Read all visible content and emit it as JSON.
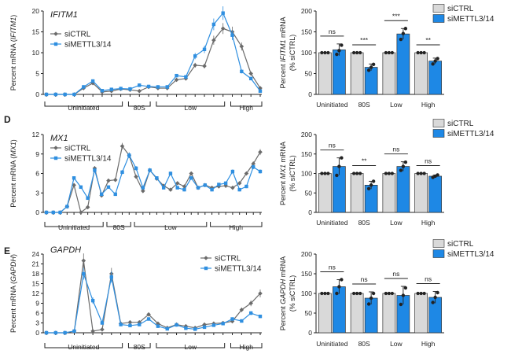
{
  "chart_data": [
    {
      "type": "line",
      "panel": "",
      "title": "IFITM1",
      "ylabel_parts": [
        "Percent mRNA (",
        "IFITM1",
        ")"
      ],
      "ylim": [
        0,
        20
      ],
      "yticks": [
        0,
        5,
        10,
        15,
        20
      ],
      "fractions": 24,
      "legend": "top-left",
      "series": [
        {
          "name": "siCTRL",
          "color": "#6b6b6b",
          "marker": "diamond",
          "values": [
            0,
            0,
            0,
            0,
            1.5,
            2.7,
            0.6,
            0.8,
            1.3,
            1.1,
            0.8,
            1.8,
            1.5,
            1.5,
            3.5,
            3.8,
            7,
            6.8,
            13,
            15.8,
            15,
            11.5,
            5,
            1.5
          ]
        },
        {
          "name": "siMETTL3/14",
          "color": "#2f8fe0",
          "marker": "square",
          "values": [
            0,
            0,
            0,
            0,
            1.8,
            3.2,
            0.9,
            1.2,
            1.4,
            1.3,
            2.2,
            1.9,
            1.8,
            1.8,
            4.5,
            4.2,
            9.2,
            10.8,
            16.8,
            19.5,
            14.2,
            5.5,
            3.8,
            0.8
          ]
        }
      ],
      "regions": [
        "Uninitiated",
        "80S",
        "Low",
        "High"
      ]
    },
    {
      "type": "line",
      "panel": "D",
      "title": "MX1",
      "ylabel_parts": [
        "Percent mRNA (",
        "MX1",
        ")"
      ],
      "ylim": [
        0,
        12
      ],
      "yticks": [
        0,
        3,
        6,
        9,
        12
      ],
      "fractions": 32,
      "legend": "top-left",
      "series": [
        {
          "name": "siCTRL",
          "color": "#6b6b6b",
          "marker": "diamond",
          "values": [
            0,
            0,
            0,
            0.9,
            4.2,
            0,
            0.8,
            6.8,
            2.6,
            4.9,
            5,
            10.2,
            8.8,
            5.5,
            3.3,
            6.5,
            5.2,
            4.1,
            3.5,
            4.5,
            4,
            6,
            3.8,
            4.2,
            3.8,
            4,
            4.1,
            3.8,
            4.5,
            6,
            7.5,
            9.3
          ]
        },
        {
          "name": "siMETTL3/14",
          "color": "#2f8fe0",
          "marker": "square",
          "values": [
            0,
            0,
            0,
            0.9,
            5.3,
            3.9,
            2.2,
            6.5,
            2.8,
            3.9,
            2.8,
            6.2,
            8.8,
            6.8,
            3.8,
            6.5,
            5.3,
            3.8,
            6,
            3.8,
            3.5,
            5.3,
            3.8,
            4.2,
            3.5,
            4.3,
            4.5,
            6.3,
            3.5,
            4,
            7,
            6.3
          ]
        }
      ],
      "regions": [
        "Uninitiated",
        "80S",
        "Low",
        "High"
      ]
    },
    {
      "type": "line",
      "panel": "E",
      "title": "GAPDH",
      "ylabel_parts": [
        "Percent mRNA (",
        "GAPDH",
        ")"
      ],
      "ylim": [
        0,
        24
      ],
      "yticks": [
        0,
        3,
        6,
        9,
        12,
        15,
        18,
        21,
        24
      ],
      "fractions": 24,
      "legend": "top-right",
      "series": [
        {
          "name": "siCTRL",
          "color": "#6b6b6b",
          "marker": "diamond",
          "values": [
            0,
            0,
            0,
            0.5,
            22,
            0.5,
            1,
            18,
            2.8,
            3.2,
            3.2,
            5.6,
            2.8,
            1.5,
            2.5,
            2,
            1.5,
            2.5,
            2.8,
            3,
            3.5,
            7,
            9,
            12
          ]
        },
        {
          "name": "siMETTL3/14",
          "color": "#2f8fe0",
          "marker": "square",
          "values": [
            0,
            0,
            0,
            0.5,
            18,
            9.8,
            3,
            17,
            2.5,
            2.2,
            2.5,
            4.2,
            2,
            1.2,
            2.4,
            1.4,
            1.1,
            1.7,
            2.3,
            2.8,
            4.2,
            3.6,
            6,
            5
          ]
        }
      ],
      "regions": [
        "Uninitiated",
        "80S",
        "Low",
        "High"
      ]
    },
    {
      "type": "bar",
      "panel": "",
      "ylabel_lines": [
        [
          "Percent ",
          "IFITM1",
          " mRNA"
        ],
        [
          "(% siCTRL)"
        ]
      ],
      "ylim": [
        0,
        200
      ],
      "yticks": [
        0,
        50,
        100,
        150,
        200
      ],
      "categories": [
        "Uninitiated",
        "80S",
        "Low",
        "High"
      ],
      "legend": "top-right",
      "series": [
        {
          "name": "siCTRL",
          "color": "#d9d9d9",
          "values": [
            100,
            100,
            100,
            100
          ],
          "errors": [
            0,
            0,
            0,
            0
          ]
        },
        {
          "name": "siMETTL3/14",
          "color": "#1e88e5",
          "values": [
            107,
            65,
            145,
            80
          ],
          "errors": [
            14,
            8,
            13,
            7
          ],
          "points": [
            [
              96,
              105,
              118
            ],
            [
              58,
              65,
              72
            ],
            [
              132,
              146,
              158
            ],
            [
              73,
              80,
              86
            ]
          ]
        }
      ],
      "significance": [
        "ns",
        "***",
        "***",
        "**"
      ]
    },
    {
      "type": "bar",
      "panel": "",
      "ylabel_lines": [
        [
          "Percent ",
          "MX1",
          " mRNA"
        ],
        [
          "(% siCTRL)"
        ]
      ],
      "ylim": [
        0,
        200
      ],
      "yticks": [
        0,
        50,
        100,
        150,
        200
      ],
      "categories": [
        "Uninitiated",
        "80S",
        "Low",
        "High"
      ],
      "legend": "top-right",
      "series": [
        {
          "name": "siCTRL",
          "color": "#d9d9d9",
          "values": [
            100,
            100,
            100,
            100
          ],
          "errors": [
            0,
            0,
            0,
            0
          ]
        },
        {
          "name": "siMETTL3/14",
          "color": "#1e88e5",
          "values": [
            118,
            70,
            118,
            93
          ],
          "errors": [
            22,
            10,
            12,
            3
          ],
          "points": [
            [
              95,
              118,
              140
            ],
            [
              61,
              70,
              80
            ],
            [
              108,
              118,
              129
            ],
            [
              90,
              93,
              96
            ]
          ]
        }
      ],
      "significance": [
        "ns",
        "**",
        "ns",
        "ns"
      ]
    },
    {
      "type": "bar",
      "panel": "",
      "ylabel_lines": [
        [
          "Percent ",
          "GAPDH",
          " mRNA"
        ],
        [
          "(% siCTRL)"
        ]
      ],
      "ylim": [
        0,
        200
      ],
      "yticks": [
        0,
        50,
        100,
        150,
        200
      ],
      "categories": [
        "Uninitiated",
        "80S",
        "Low",
        "High"
      ],
      "legend": "top-right",
      "series": [
        {
          "name": "siCTRL",
          "color": "#d9d9d9",
          "values": [
            100,
            100,
            100,
            100
          ],
          "errors": [
            0,
            0,
            0,
            0
          ]
        },
        {
          "name": "siMETTL3/14",
          "color": "#1e88e5",
          "values": [
            117,
            88,
            95,
            90
          ],
          "errors": [
            18,
            16,
            23,
            15
          ],
          "points": [
            [
              100,
              117,
              135
            ],
            [
              73,
              88,
              100
            ],
            [
              72,
              95,
              114
            ],
            [
              77,
              90,
              102
            ]
          ]
        }
      ],
      "significance": [
        "ns",
        "ns",
        "ns",
        "ns"
      ]
    }
  ]
}
